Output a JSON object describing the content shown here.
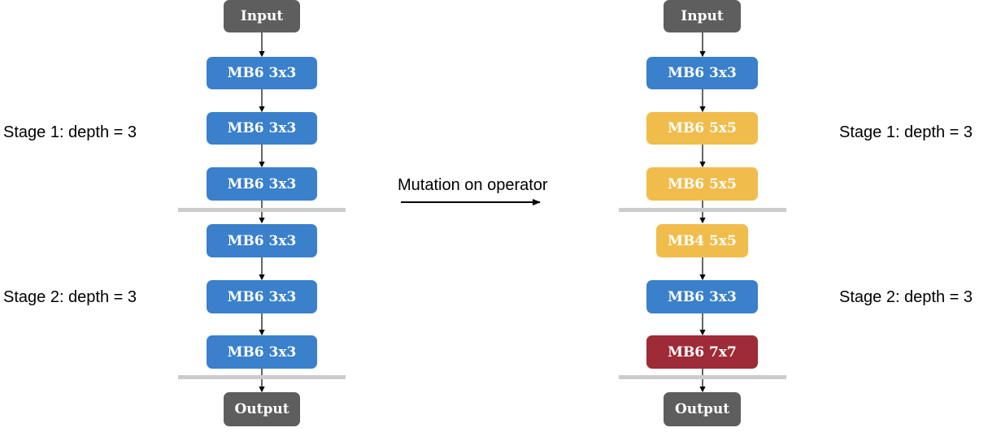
{
  "left": {
    "input_label": "Input",
    "blocks": [
      "MB6 3x3",
      "MB6 3x3",
      "MB6 3x3",
      "MB6 3x3",
      "MB6 3x3",
      "MB6 3x3"
    ],
    "output_label": "Output",
    "stage1_label": "Stage 1: depth = 3",
    "stage2_label": "Stage 2: depth = 3"
  },
  "right": {
    "input_label": "Input",
    "blocks": [
      "MB6 3x3",
      "MB6 5x5",
      "MB6 5x5",
      "MB4 5x5",
      "MB6 3x3",
      "MB6 7x7"
    ],
    "output_label": "Output",
    "stage1_label": "Stage 1: depth = 3",
    "stage2_label": "Stage 2: depth = 3"
  },
  "mutation": {
    "label": "Mutation on operator"
  },
  "colors": {
    "io": "#5e5e5e",
    "mb6_3x3": "#3a80cb",
    "mb_5x5": "#f0bd4c",
    "mb6_7x7": "#9e2b37",
    "stage_divider": "#cccccc"
  }
}
